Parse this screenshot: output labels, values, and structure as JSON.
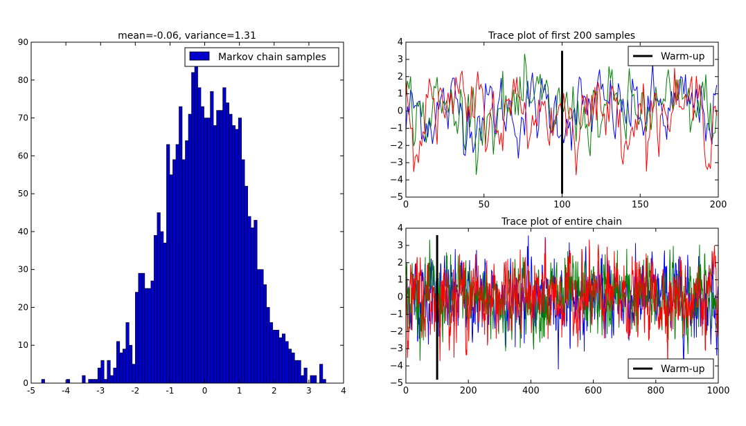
{
  "chart_data": [
    {
      "type": "bar",
      "title": "mean=-0.06, variance=1.31",
      "legend": [
        "Markov chain samples"
      ],
      "legend_position": "top-right",
      "bar_color": "#0000cc",
      "xlim": [
        -5,
        4
      ],
      "ylim": [
        0,
        90
      ],
      "xticks": [
        "-5",
        "-4",
        "-3",
        "-2",
        "-1",
        "0",
        "1",
        "2",
        "3",
        "4"
      ],
      "yticks": [
        "0",
        "10",
        "20",
        "30",
        "40",
        "50",
        "60",
        "70",
        "80",
        "90"
      ],
      "bin_width": 0.09,
      "bins_start": [
        -4.7,
        -4.61,
        -4.52,
        -4.43,
        -4.34,
        -4.25,
        -4.16,
        -4.07,
        -3.98,
        -3.89,
        -3.8,
        -3.71,
        -3.62,
        -3.53,
        -3.44,
        -3.35,
        -3.26,
        -3.17,
        -3.08,
        -2.99,
        -2.9,
        -2.81,
        -2.72,
        -2.63,
        -2.54,
        -2.45,
        -2.36,
        -2.27,
        -2.18,
        -2.09,
        -2.0,
        -1.91,
        -1.82,
        -1.73,
        -1.64,
        -1.55,
        -1.46,
        -1.37,
        -1.28,
        -1.19,
        -1.1,
        -1.01,
        -0.92,
        -0.83,
        -0.74,
        -0.65,
        -0.56,
        -0.47,
        -0.38,
        -0.29,
        -0.2,
        -0.11,
        -0.02,
        0.07,
        0.16,
        0.25,
        0.34,
        0.43,
        0.52,
        0.61,
        0.7,
        0.79,
        0.88,
        0.97,
        1.06,
        1.15,
        1.24,
        1.33,
        1.42,
        1.51,
        1.6,
        1.69,
        1.78,
        1.87,
        1.96,
        2.05,
        2.14,
        2.23,
        2.32,
        2.41,
        2.5,
        2.59,
        2.68,
        2.77,
        2.86,
        2.95,
        3.04,
        3.13,
        3.22,
        3.31,
        3.4
      ],
      "values": [
        1,
        0,
        0,
        0,
        0,
        0,
        0,
        0,
        1,
        0,
        0,
        0,
        0,
        2,
        0,
        1,
        1,
        1,
        4,
        6,
        1,
        6,
        2,
        4,
        11,
        8,
        9,
        16,
        10,
        5,
        24,
        29,
        29,
        25,
        25,
        27,
        39,
        45,
        40,
        37,
        63,
        55,
        59,
        63,
        73,
        59,
        64,
        71,
        82,
        84,
        78,
        73,
        70,
        70,
        77,
        68,
        72,
        72,
        78,
        74,
        71,
        68,
        67,
        70,
        59,
        52,
        44,
        41,
        43,
        30,
        30,
        26,
        20,
        16,
        14,
        14,
        12,
        13,
        11,
        9,
        8,
        6,
        6,
        2,
        4,
        0,
        2,
        2,
        0,
        5,
        1
      ]
    },
    {
      "type": "line",
      "title": "Trace plot of first 200 samples",
      "legend": [
        "Warm-up"
      ],
      "legend_position": "top-right",
      "xlim": [
        0,
        200
      ],
      "ylim": [
        -5,
        4
      ],
      "xticks": [
        "0",
        "50",
        "100",
        "150",
        "200"
      ],
      "yticks": [
        "−5",
        "−4",
        "−3",
        "−2",
        "−1",
        "0",
        "1",
        "2",
        "3",
        "4"
      ],
      "warmup_x": 100,
      "warmup_y": [
        -4.8,
        3.5
      ],
      "series_colors": [
        "#0000ff",
        "#008000",
        "#ff0000"
      ]
    },
    {
      "type": "line",
      "title": "Trace plot of entire chain",
      "legend": [
        "Warm-up"
      ],
      "legend_position": "bottom-right",
      "xlim": [
        0,
        1000
      ],
      "ylim": [
        -5,
        4
      ],
      "xticks": [
        "0",
        "200",
        "400",
        "600",
        "800",
        "1000"
      ],
      "yticks": [
        "−5",
        "−4",
        "−3",
        "−2",
        "−1",
        "0",
        "1",
        "2",
        "3",
        "4"
      ],
      "warmup_x": 100,
      "warmup_y": [
        -4.8,
        3.6
      ],
      "series_colors": [
        "#0000ff",
        "#008000",
        "#ff0000"
      ]
    }
  ]
}
